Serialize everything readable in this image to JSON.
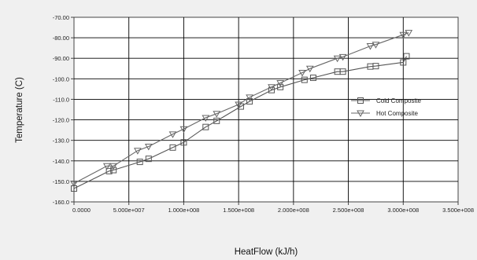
{
  "chart_data": {
    "type": "line",
    "title": "",
    "xlabel": "HeatFlow (kJ/h)",
    "ylabel": "Temperature (C)",
    "xlim": [
      0,
      350000000
    ],
    "ylim": [
      -160,
      -70
    ],
    "x_ticks": [
      "0.0000",
      "5.000e+007",
      "1.000e+008",
      "1.500e+008",
      "2.000e+008",
      "2.500e+008",
      "3.000e+008",
      "3.500e+008"
    ],
    "y_ticks": [
      "-70.00",
      "-80.00",
      "-90.00",
      "-100.0",
      "-110.0",
      "-120.0",
      "-130.0",
      "-140.0",
      "-150.0",
      "-160.0"
    ],
    "grid": true,
    "legend_position": "right",
    "series": [
      {
        "name": "Cold Composite",
        "marker": "square",
        "color": "#555555",
        "x": [
          0,
          32000000,
          36000000,
          60000000,
          68000000,
          90000000,
          100000000,
          120000000,
          130000000,
          152000000,
          160000000,
          180000000,
          188000000,
          210000000,
          218000000,
          240000000,
          245000000,
          270000000,
          275000000,
          300000000,
          303000000
        ],
        "y": [
          -153.5,
          -145,
          -144.5,
          -140.5,
          -139,
          -133.5,
          -131,
          -123.5,
          -120.5,
          -113.5,
          -111,
          -105.5,
          -104,
          -100.5,
          -99.5,
          -96.5,
          -96.5,
          -94,
          -93.8,
          -92,
          -89
        ]
      },
      {
        "name": "Hot Composite",
        "marker": "triangle-down",
        "color": "#666666",
        "x": [
          0,
          30000000,
          36000000,
          58000000,
          68000000,
          90000000,
          100000000,
          120000000,
          130000000,
          150000000,
          160000000,
          180000000,
          188000000,
          208000000,
          215000000,
          240000000,
          245000000,
          270000000,
          275000000,
          300000000,
          305000000
        ],
        "y": [
          -151,
          -142.5,
          -142.5,
          -135,
          -133,
          -127,
          -124.5,
          -119,
          -117,
          -112.5,
          -109,
          -104,
          -102,
          -97,
          -95,
          -90,
          -89.3,
          -84,
          -83.3,
          -78.5,
          -77.5
        ]
      }
    ]
  }
}
